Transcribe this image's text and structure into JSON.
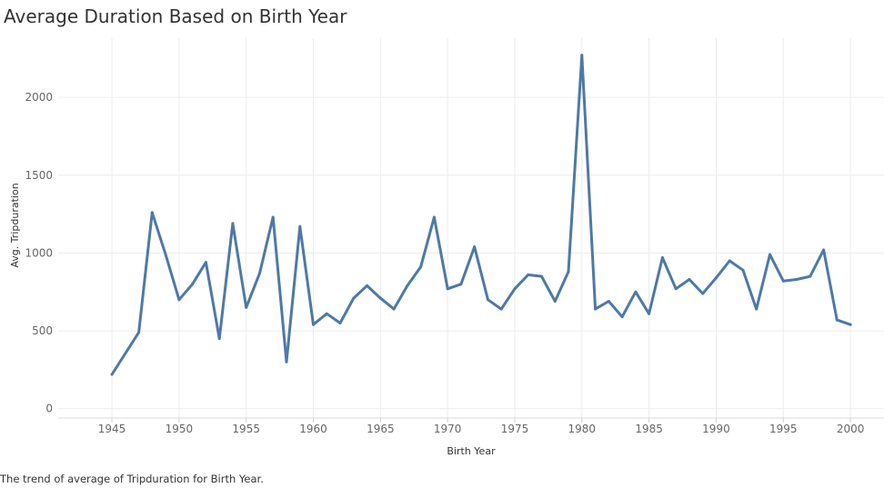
{
  "title": "Average Duration Based on Birth Year",
  "caption": "The trend of average of Tripduration for Birth Year.",
  "colors": {
    "line": "#4e79a7",
    "grid": "#ececec",
    "text": "#333333",
    "tick": "#666666"
  },
  "chart_data": {
    "type": "line",
    "title": "Average Duration Based on Birth Year",
    "xlabel": "Birth Year",
    "ylabel": "Avg. Tripduration",
    "xlim": [
      1941,
      2002.5
    ],
    "ylim": [
      -60,
      2380
    ],
    "x_ticks": [
      1945,
      1950,
      1955,
      1960,
      1965,
      1970,
      1975,
      1980,
      1985,
      1990,
      1995,
      2000
    ],
    "y_ticks": [
      0,
      500,
      1000,
      1500,
      2000
    ],
    "grid": true,
    "series": [
      {
        "x": [
          1945,
          1947,
          1948,
          1949,
          1950,
          1951,
          1952,
          1953,
          1954,
          1955,
          1956,
          1957,
          1958,
          1959,
          1960,
          1961,
          1962,
          1963,
          1964,
          1965,
          1966,
          1967,
          1968,
          1969,
          1970,
          1971,
          1972,
          1973,
          1974,
          1975,
          1976,
          1977,
          1978,
          1979,
          1980,
          1981,
          1982,
          1983,
          1984,
          1985,
          1986,
          1987,
          1988,
          1989,
          1990,
          1991,
          1992,
          1993,
          1994,
          1995,
          1996,
          1997,
          1998,
          1999,
          2000
        ],
        "values": [
          220,
          490,
          1260,
          990,
          700,
          800,
          940,
          450,
          1190,
          650,
          870,
          1230,
          300,
          1170,
          540,
          610,
          550,
          710,
          790,
          710,
          640,
          790,
          910,
          1230,
          770,
          800,
          1040,
          700,
          640,
          770,
          860,
          850,
          690,
          880,
          2270,
          640,
          690,
          590,
          750,
          610,
          970,
          770,
          830,
          740,
          840,
          950,
          890,
          640,
          990,
          820,
          830,
          850,
          1020,
          570,
          540
        ]
      }
    ]
  }
}
